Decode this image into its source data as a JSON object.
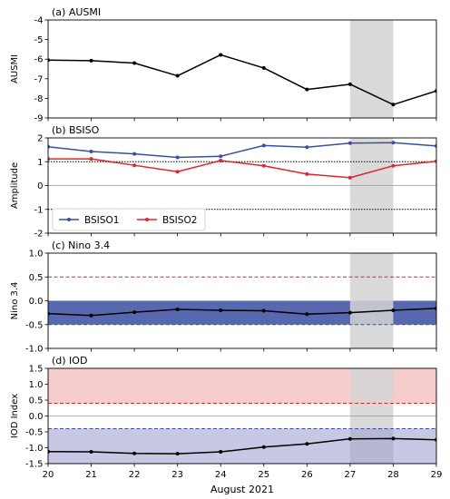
{
  "figure": {
    "xlabel": "August 2021",
    "x_ticks": [
      20,
      21,
      22,
      23,
      24,
      25,
      26,
      27,
      28,
      29
    ],
    "highlight_span": [
      27,
      28
    ],
    "highlight_color": "#d3d3d3"
  },
  "chart_data": [
    {
      "type": "line",
      "title": "(a) AUSMI",
      "ylabel": "AUSMI",
      "xlim": [
        20,
        29
      ],
      "ylim": [
        -9,
        -4
      ],
      "yticks": [
        -9,
        -8,
        -7,
        -6,
        -5,
        -4
      ],
      "ytick_labels": [
        "-9",
        "-8",
        "-7",
        "-6",
        "-5",
        "-4"
      ],
      "highlight": true,
      "bands": [],
      "hlines": [],
      "series": [
        {
          "color": "#000000",
          "x": [
            20,
            21,
            22,
            23,
            24,
            25,
            26,
            27,
            28,
            29
          ],
          "values": [
            -6.05,
            -6.08,
            -6.2,
            -6.85,
            -5.78,
            -6.45,
            -7.55,
            -7.28,
            -8.32,
            -7.62
          ]
        }
      ]
    },
    {
      "type": "line",
      "title": "(b) BSISO",
      "ylabel": "Amplitude",
      "xlim": [
        20,
        29
      ],
      "ylim": [
        -2,
        2
      ],
      "yticks": [
        -2,
        -1,
        0,
        1,
        2
      ],
      "ytick_labels": [
        "-2",
        "-1",
        "0",
        "1",
        "2"
      ],
      "highlight": true,
      "bands": [],
      "hlines": [
        {
          "y": 1,
          "color": "#000000",
          "style": "dotted"
        },
        {
          "y": -1,
          "color": "#000000",
          "style": "dotted"
        },
        {
          "y": 0,
          "color": "#999999",
          "style": "solid"
        }
      ],
      "legend": {
        "position": "lower-left"
      },
      "series": [
        {
          "name": "BSISO1",
          "color": "#3a4fa0",
          "x": [
            20,
            21,
            22,
            23,
            24,
            25,
            26,
            27,
            28,
            29
          ],
          "values": [
            1.63,
            1.43,
            1.33,
            1.18,
            1.23,
            1.68,
            1.61,
            1.78,
            1.8,
            1.66
          ]
        },
        {
          "name": "BSISO2",
          "color": "#e0252b",
          "x": [
            20,
            21,
            22,
            23,
            24,
            25,
            26,
            27,
            28,
            29
          ],
          "values": [
            1.12,
            1.12,
            0.85,
            0.58,
            1.05,
            0.83,
            0.48,
            0.33,
            0.83,
            1.02
          ]
        }
      ]
    },
    {
      "type": "line",
      "title": "(c) Nino 3.4",
      "ylabel": "Nino 3.4",
      "xlim": [
        20,
        29
      ],
      "ylim": [
        -1,
        1
      ],
      "yticks": [
        -1,
        -0.5,
        0,
        0.5,
        1
      ],
      "ytick_labels": [
        "-1.0",
        "-0.5",
        "0.0",
        "0.5",
        "1.0"
      ],
      "highlight": true,
      "bands": [
        {
          "y0": -0.5,
          "y1": 0,
          "color": "#3b4ea0",
          "opacity": 0.85,
          "above": false
        }
      ],
      "hlines": [
        {
          "y": 0.5,
          "color": "#e0252b",
          "style": "dashed"
        },
        {
          "y": -0.5,
          "color": "#3a4fa0",
          "style": "dashed"
        }
      ],
      "series": [
        {
          "color": "#000000",
          "x": [
            20,
            21,
            22,
            23,
            24,
            25,
            26,
            27,
            28,
            29
          ],
          "values": [
            -0.27,
            -0.31,
            -0.24,
            -0.18,
            -0.2,
            -0.21,
            -0.28,
            -0.25,
            -0.2,
            -0.16
          ]
        }
      ]
    },
    {
      "type": "line",
      "title": "(d) IOD",
      "ylabel": "IOD Index",
      "xlim": [
        20,
        29
      ],
      "ylim": [
        -1.5,
        1.5
      ],
      "yticks": [
        -1.5,
        -1,
        -0.5,
        0,
        0.5,
        1,
        1.5
      ],
      "ytick_labels": [
        "-1.5",
        "-1.0",
        "-0.5",
        "0.0",
        "0.5",
        "1.0",
        "1.5"
      ],
      "highlight": true,
      "bands": [
        {
          "y0": 0.4,
          "y1": 1.5,
          "color": "#f4b6b8",
          "opacity": 0.7,
          "above": false
        },
        {
          "y0": -1.5,
          "y1": -0.4,
          "color": "#9b9bd0",
          "opacity": 0.55,
          "above": true
        }
      ],
      "hlines": [
        {
          "y": 0.4,
          "color": "#e0252b",
          "style": "dashed"
        },
        {
          "y": -0.4,
          "color": "#3a4fa0",
          "style": "dashed"
        },
        {
          "y": 0,
          "color": "#999999",
          "style": "solid"
        }
      ],
      "series": [
        {
          "color": "#000000",
          "x": [
            20,
            21,
            22,
            23,
            24,
            25,
            26,
            27,
            28,
            29
          ],
          "values": [
            -1.12,
            -1.13,
            -1.18,
            -1.19,
            -1.13,
            -0.98,
            -0.88,
            -0.72,
            -0.71,
            -0.75
          ]
        }
      ]
    }
  ]
}
